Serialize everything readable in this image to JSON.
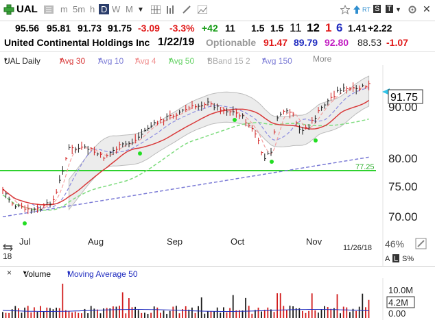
{
  "toolbar": {
    "symbol": "UAL",
    "periods": [
      "m",
      "5m",
      "h",
      "D",
      "W",
      "M"
    ],
    "active_period": "D",
    "tags": [
      "RT",
      "S",
      "T"
    ]
  },
  "quote": {
    "open": "95.56",
    "high": "95.81",
    "low": "91.73",
    "last": "91.75",
    "change": "-3.09",
    "change_pct": "-3.3%",
    "m1": "+42",
    "m2": "11",
    "m3": "1.5",
    "m4": "1.5",
    "m5": "11",
    "m6": "12",
    "m7": "1",
    "m8": "6",
    "m9": "1.41",
    "m10": "+2.22"
  },
  "company": {
    "name": "United Continental Holdings Inc",
    "date": "1/22/19",
    "optionable": "Optionable",
    "v1": "91.47",
    "v2": "89.79",
    "v3": "92.80",
    "v4": "88.53",
    "v5": "-1.07"
  },
  "legend": {
    "main": "UAL Daily",
    "items": [
      {
        "label": "Avg 30",
        "color": "#d93a3a"
      },
      {
        "label": "Avg 10",
        "color": "#7b7bd6"
      },
      {
        "label": "Avg 4",
        "color": "#f08c8c"
      },
      {
        "label": "Avg 50",
        "color": "#66d266"
      },
      {
        "label": "BBand 15 2",
        "color": "#a9a9a9"
      },
      {
        "label": "Avg 150",
        "color": "#7b7bd6"
      }
    ],
    "more": "More"
  },
  "chart": {
    "price_ticks": [
      "90.00",
      "80.00",
      "75.00",
      "70.00"
    ],
    "current_price": "91.75",
    "hline_label": "77.25",
    "months": [
      "Jul",
      "Aug",
      "Sep",
      "Oct",
      "Nov"
    ],
    "date_label": "11/26/18",
    "zoom_pct": "46%",
    "year_frag": "18",
    "scale_options": [
      "A",
      "L",
      "S%"
    ]
  },
  "chart_data": {
    "type": "line",
    "title": "UAL Daily",
    "x_months": [
      "Jul",
      "Aug",
      "Sep",
      "Oct",
      "Nov"
    ],
    "y_ticks": [
      70,
      75,
      80,
      90
    ],
    "horizontal_line": 77.25,
    "last_price": 91.75,
    "series": [
      {
        "name": "Avg 30",
        "color": "#d93a3a"
      },
      {
        "name": "Avg 10",
        "color": "#7b7bd6"
      },
      {
        "name": "Avg 4",
        "color": "#f08c8c"
      },
      {
        "name": "Avg 50",
        "color": "#66d266"
      },
      {
        "name": "BBand 15 2",
        "color": "#a9a9a9"
      },
      {
        "name": "Avg 150",
        "color": "#7b7bd6"
      }
    ]
  },
  "volume": {
    "title": "Volume",
    "avg_label": "Moving Average 50",
    "ticks": [
      "10.0M",
      "4.2M",
      "0.00"
    ]
  }
}
